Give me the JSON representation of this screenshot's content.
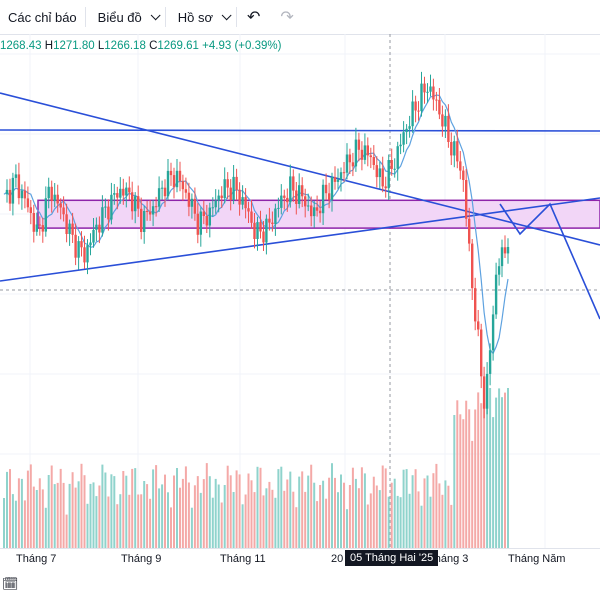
{
  "toolbar": {
    "indicators_label": "Các chỉ báo",
    "chart_label": "Biểu đồ",
    "profile_label": "Hồ sơ",
    "undo_icon": "↶",
    "redo_icon": "↷"
  },
  "legend": {
    "open": "1268.43",
    "high_key": "H",
    "high": "1271.80",
    "low_key": "L",
    "low": "1266.18",
    "close_key": "C",
    "close": "1269.61",
    "change": "+4.93 (+0.39%)"
  },
  "colors": {
    "up": "#26a69a",
    "down": "#ef5350",
    "volume_up": "#8fd3cc",
    "volume_down": "#f4a9a7",
    "trendline": "#2a4fd8",
    "ma": "#5ea2e0",
    "zone_fill": "#f2d6f7",
    "zone_border": "#8e24aa",
    "accent": "#2962ff"
  },
  "bottom": {
    "calendar_icon": "🗓"
  },
  "chart_data": {
    "type": "candlestick",
    "x_ticks": [
      "Tháng 7",
      "Tháng 9",
      "Tháng 11",
      "20",
      "Tháng 3",
      "Tháng Năm"
    ],
    "crosshair_label": "05 Tháng Hai '25",
    "ohlc_last": {
      "open": 1268.43,
      "high": 1271.8,
      "low": 1266.18,
      "close": 1269.61,
      "change": 4.93,
      "change_pct": 0.39
    },
    "price_path": [
      1290,
      1300,
      1288,
      1272,
      1296,
      1285,
      1270,
      1262,
      1276,
      1286,
      1295,
      1293,
      1280,
      1286,
      1298,
      1303,
      1292,
      1278,
      1284,
      1295,
      1297,
      1288,
      1273,
      1276,
      1288,
      1296,
      1292,
      1282,
      1293,
      1300,
      1309,
      1316,
      1312,
      1298,
      1308,
      1325,
      1338,
      1348,
      1335,
      1318,
      1305,
      1240,
      1185,
      1255,
      1270
    ],
    "zone": {
      "low": 1276,
      "high": 1290
    }
  }
}
